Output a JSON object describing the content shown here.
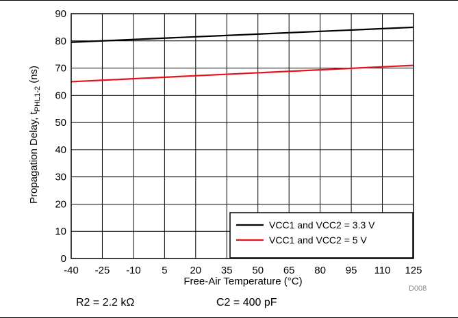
{
  "chart_data": {
    "type": "line",
    "xlabel": "Free-Air Temperature (°C)",
    "ylabel": {
      "prefix": "Propagation Delay, t",
      "subscript": "PHL1-2",
      "suffix": " (ns)"
    },
    "xlim": [
      -40,
      125
    ],
    "ylim": [
      0,
      90
    ],
    "x_ticks": [
      -40,
      -25,
      -10,
      5,
      20,
      35,
      50,
      65,
      80,
      95,
      110,
      125
    ],
    "y_ticks": [
      0,
      10,
      20,
      30,
      40,
      50,
      60,
      70,
      80,
      90
    ],
    "grid": true,
    "legend_position": "bottom-right",
    "series": [
      {
        "name": "VCC1 and VCC2 = 3.3 V",
        "color": "#000000",
        "x": [
          -40,
          125
        ],
        "y": [
          79.5,
          85
        ]
      },
      {
        "name": "VCC1 and VCC2 = 5 V",
        "color": "#e8131a",
        "x": [
          -40,
          125
        ],
        "y": [
          65,
          71
        ]
      }
    ]
  },
  "figure_code": "D008",
  "conditions": {
    "r2": "R2 = 2.2 kΩ",
    "c2": "C2 = 400 pF"
  }
}
